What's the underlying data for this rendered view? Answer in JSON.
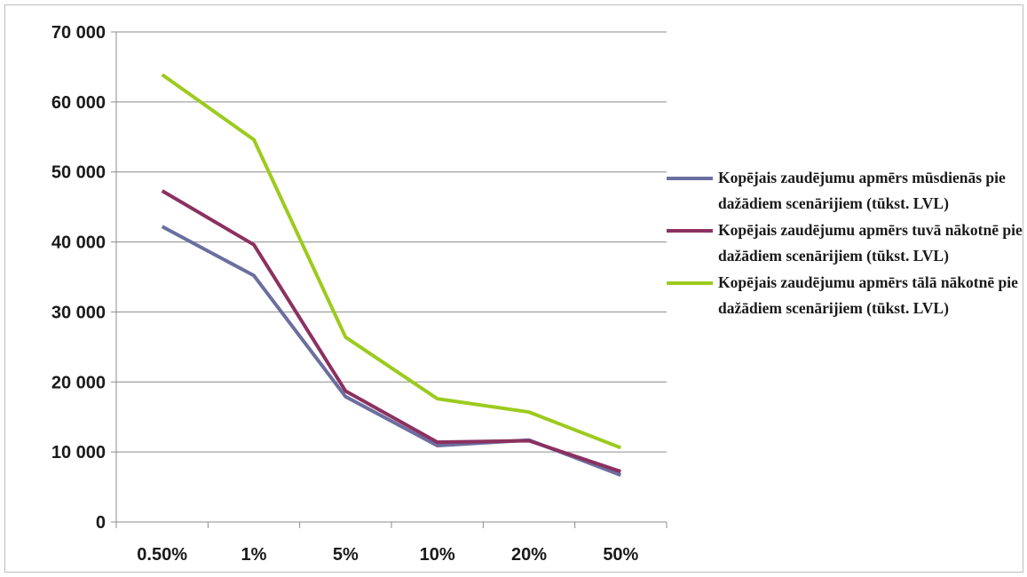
{
  "chart_data": {
    "type": "line",
    "title": "",
    "xlabel": "",
    "ylabel": "",
    "categories": [
      "0.50%",
      "1%",
      "5%",
      "10%",
      "20%",
      "50%"
    ],
    "y_ticks": [
      "0",
      "10 000",
      "20 000",
      "30 000",
      "40 000",
      "50 000",
      "60 000",
      "70 000"
    ],
    "ylim": [
      0,
      70000
    ],
    "grid": "horizontal",
    "legend_position": "right",
    "series": [
      {
        "name": "Kopējais zaudējumu apmērs mūsdienās pie dažādiem scenārijiem (tūkst. LVL)",
        "color": "#6b6f9f",
        "values": [
          42200,
          35200,
          17900,
          10900,
          11700,
          6700
        ]
      },
      {
        "name": "Kopējais zaudējumu apmērs tuvā nākotnē pie dažādiem scenārijiem (tūkst. LVL)",
        "color": "#8b3160",
        "values": [
          47300,
          39600,
          18700,
          11400,
          11600,
          7200
        ]
      },
      {
        "name": "Kopējais zaudējumu apmērs tālā nākotnē pie dažādiem scenārijiem (tūkst. LVL)",
        "color": "#9ccb1e",
        "values": [
          63900,
          54600,
          26400,
          17600,
          15700,
          10600
        ]
      }
    ]
  }
}
